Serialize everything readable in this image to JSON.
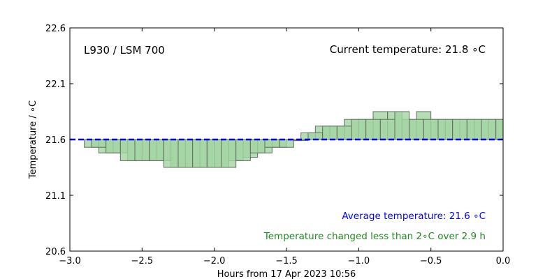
{
  "chart_data": {
    "type": "bar",
    "title": "",
    "xlabel": "Hours from 17 Apr 2023 10:56",
    "ylabel": "Temperature / ∘C",
    "xlim": [
      -3.0,
      0.0
    ],
    "ylim": [
      20.6,
      22.6
    ],
    "xticks": [
      -3.0,
      -2.5,
      -2.0,
      -1.5,
      -1.0,
      -0.5,
      0.0
    ],
    "xtick_labels": [
      "−3.0",
      "−2.5",
      "−2.0",
      "−1.5",
      "−1.0",
      "−0.5",
      "0.0"
    ],
    "yticks": [
      20.6,
      21.1,
      21.6,
      22.1,
      22.6
    ],
    "ytick_labels": [
      "20.6",
      "21.1",
      "21.6",
      "22.1",
      "22.6"
    ],
    "grid": false,
    "baseline": 21.6,
    "series": [
      {
        "x": [
          -2.85,
          -2.75,
          -2.65,
          -2.55,
          -2.45,
          -2.35,
          -2.25,
          -2.15,
          -2.05,
          -1.95,
          -1.85,
          -1.75,
          -1.65,
          -1.55,
          -1.45,
          -1.35,
          -1.25,
          -1.15,
          -1.05,
          -0.95,
          -0.85,
          -0.75,
          -0.65,
          -0.55,
          -0.45,
          -0.35,
          -0.25,
          -0.15,
          -0.05
        ],
        "values": [
          21.53,
          21.48,
          21.48,
          21.41,
          21.41,
          21.41,
          21.35,
          21.35,
          21.35,
          21.35,
          21.41,
          21.44,
          21.48,
          21.53,
          21.59,
          21.66,
          21.72,
          21.72,
          21.78,
          21.78,
          21.85,
          21.85,
          21.78,
          21.85,
          21.78,
          21.78,
          21.78,
          21.78,
          21.78
        ]
      },
      {
        "x": [
          -2.8,
          -2.7,
          -2.6,
          -2.5,
          -2.4,
          -2.3,
          -2.2,
          -2.1,
          -2.0,
          -1.9,
          -1.8,
          -1.7,
          -1.6,
          -1.5,
          -1.4,
          -1.3,
          -1.2,
          -1.1,
          -1.0,
          -0.9,
          -0.8,
          -0.7,
          -0.6,
          -0.5,
          -0.4,
          -0.3,
          -0.2,
          -0.1,
          0.0
        ],
        "values": [
          21.53,
          21.48,
          21.41,
          21.41,
          21.41,
          21.35,
          21.35,
          21.35,
          21.35,
          21.35,
          21.41,
          21.48,
          21.53,
          21.53,
          21.59,
          21.66,
          21.72,
          21.72,
          21.78,
          21.78,
          21.78,
          21.85,
          21.78,
          21.78,
          21.78,
          21.78,
          21.78,
          21.78,
          21.78
        ]
      }
    ],
    "average": 21.6,
    "colors": {
      "bar_fill_light": "#a3d3a3",
      "bar_fill_dark": "#6ab56a",
      "bar_edge": "#5f6f5f",
      "average_line": "#0000ff",
      "average_text": "#0000ff",
      "change_text": "#228b22",
      "axis": "#000000"
    }
  },
  "annotations": {
    "instrument": "L930 / LSM 700",
    "current": "Current temperature: 21.8 ∘C",
    "average": "Average temperature: 21.6 ∘C",
    "change": "Temperature changed less than 2∘C over 2.9 h"
  }
}
